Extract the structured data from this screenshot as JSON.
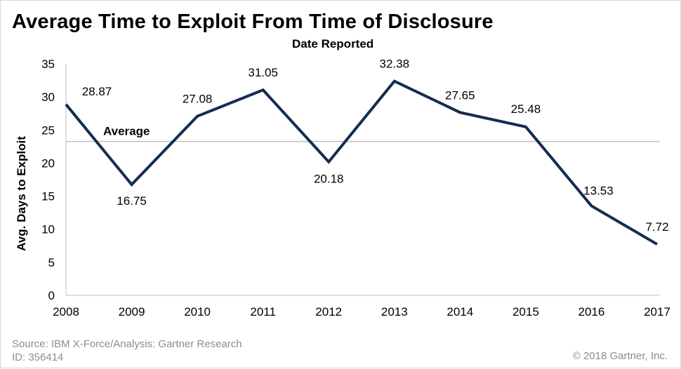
{
  "chart_data": {
    "type": "line",
    "title": "Average Time to Exploit From Time of Disclosure",
    "subtitle": "Date Reported",
    "xlabel": "",
    "ylabel": "Avg. Days to Exploit",
    "categories": [
      "2008",
      "2009",
      "2010",
      "2011",
      "2012",
      "2013",
      "2014",
      "2015",
      "2016",
      "2017"
    ],
    "series": [
      {
        "name": "Avg. Days to Exploit",
        "values": [
          28.87,
          16.75,
          27.08,
          31.05,
          20.18,
          32.38,
          27.65,
          25.48,
          13.53,
          7.72
        ],
        "data_labels": [
          "28.87",
          "16.75",
          "27.08",
          "31.05",
          "20.18",
          "32.38",
          "27.65",
          "25.48",
          "13.53",
          "7.72"
        ],
        "color": "#142d50"
      }
    ],
    "reference_line": {
      "label": "Average",
      "value": 23.27,
      "color": "#bfbfbf"
    },
    "ylim": [
      0,
      35
    ],
    "yticks": [
      "0",
      "5",
      "10",
      "15",
      "20",
      "25",
      "30",
      "35"
    ],
    "grid": false,
    "legend": "none"
  },
  "footer": {
    "source": "Source: IBM X-Force/Analysis: Gartner Research",
    "id": "ID: 356414",
    "copyright": "© 2018 Gartner, Inc."
  }
}
